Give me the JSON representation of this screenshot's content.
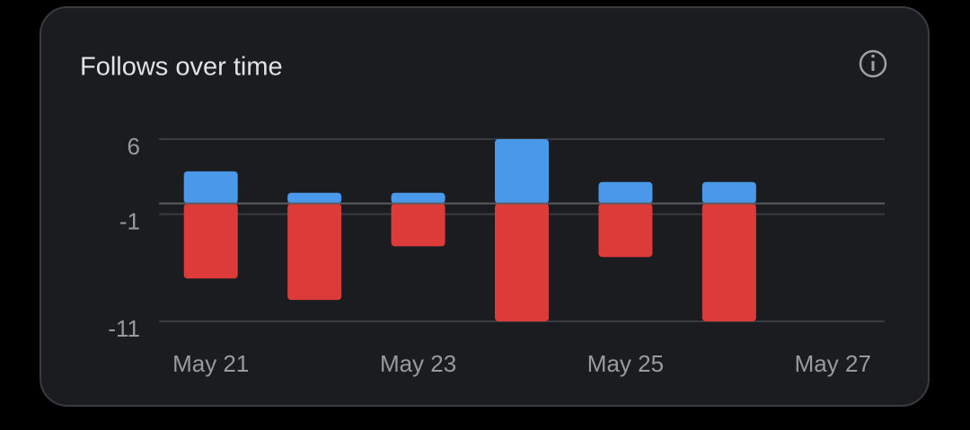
{
  "chart_data": {
    "type": "bar",
    "stacked": true,
    "title": "Follows over time",
    "categories": [
      "May 21",
      null,
      "May 23",
      null,
      "May 25",
      null,
      "May 27"
    ],
    "series": [
      {
        "color": "#4a98e9",
        "values": [
          3,
          1,
          1,
          6,
          2,
          2,
          0
        ]
      },
      {
        "color": "#dc3b3a",
        "values": [
          -7,
          -9,
          -4,
          -11,
          -5,
          -11,
          0
        ]
      }
    ],
    "ylim": [
      -11,
      6
    ],
    "yticks": [
      6,
      -1,
      -11
    ],
    "grid": true
  }
}
